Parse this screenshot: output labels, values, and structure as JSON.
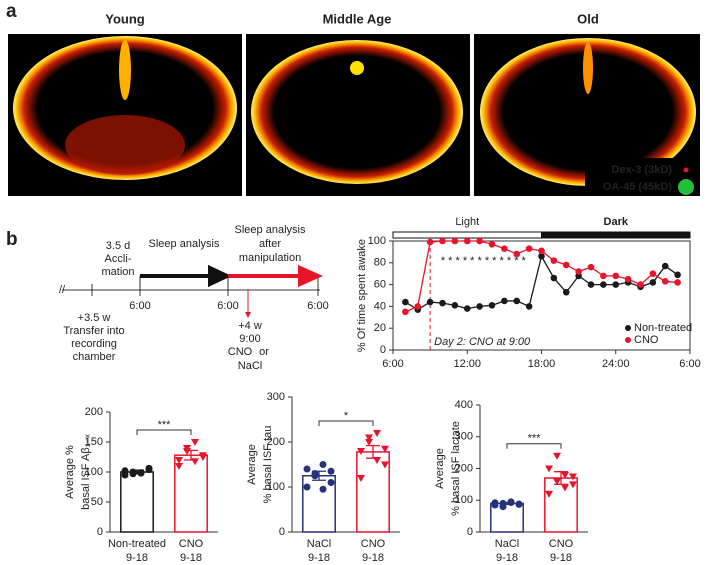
{
  "panel_a": {
    "label": "a",
    "titles": [
      "Young",
      "Middle Age",
      "Old"
    ],
    "legend": [
      {
        "text": "Dex-3 (3kD)",
        "color": "#e8142a"
      },
      {
        "text": "OA-45 (45kD)",
        "color": "#22c03a"
      }
    ]
  },
  "panel_b": {
    "label": "b"
  },
  "timeline": {
    "break": "//",
    "acclimation": [
      "3.5 d",
      "Accli-",
      "mation"
    ],
    "sleep_analysis": "Sleep analysis",
    "sleep_after": [
      "Sleep analysis",
      "after",
      "manipulation"
    ],
    "times": [
      "6:00",
      "6:00",
      "6:00"
    ],
    "transfer": [
      "+3.5 w",
      "Transfer into",
      "recording",
      "chamber"
    ],
    "injection": [
      "+4 w",
      "9:00"
    ],
    "cno": "CNO",
    "or": "or",
    "nacl": "NaCl"
  },
  "chart_data": [
    {
      "type": "line",
      "y_label": "% Of time spent awake",
      "x": [
        7,
        8,
        9,
        10,
        11,
        12,
        13,
        14,
        15,
        16,
        17,
        18,
        19,
        20,
        21,
        22,
        23,
        24,
        25,
        26,
        27,
        28,
        29
      ],
      "series": [
        {
          "name": "Non-treated",
          "color": "#1a1a1a",
          "values": [
            44,
            37,
            44,
            43,
            41,
            38,
            40,
            41,
            45,
            45,
            40,
            86,
            66,
            53,
            68,
            60,
            60,
            60,
            62,
            58,
            62,
            77,
            69
          ]
        },
        {
          "name": "CNO",
          "color": "#e8142a",
          "values": [
            35,
            40,
            99,
            100,
            100,
            100,
            100,
            97,
            93,
            88,
            93,
            91,
            82,
            78,
            72,
            76,
            68,
            68,
            65,
            60,
            70,
            63,
            62
          ]
        }
      ],
      "xlim": [
        6,
        30
      ],
      "xticks": [
        {
          "value": 6,
          "label": "6:00"
        },
        {
          "value": 12,
          "label": "12:00"
        },
        {
          "value": 18,
          "label": "18:00"
        },
        {
          "value": 24,
          "label": "24:00"
        },
        {
          "value": 30,
          "label": "6:00"
        }
      ],
      "ylim": [
        0,
        100
      ],
      "yticks": [
        0,
        20,
        40,
        60,
        80,
        100
      ],
      "phases": [
        {
          "label": "Light",
          "start": 6,
          "end": 18,
          "color": "#ffffff"
        },
        {
          "label": "Dark",
          "start": 18,
          "end": 30,
          "color": "#111111"
        }
      ],
      "marker": {
        "text": "Day 2: CNO at 9:00",
        "x": 9,
        "color": "#e8142a"
      },
      "stars": {
        "text": "* * * * * * * * * * * *",
        "x": 13.3
      },
      "legend": "bottom-right"
    },
    {
      "type": "bar",
      "y_label": [
        "Average %",
        "basal ISF Aβ₁₋ₓ"
      ],
      "categories": [
        "Non-treated",
        "CNO"
      ],
      "sublabels": [
        "9-18",
        "9-18"
      ],
      "values": [
        100,
        128
      ],
      "errors": [
        3,
        8
      ],
      "colors": [
        "#1a1a1a",
        "#e8142a"
      ],
      "points": [
        [
          95,
          100,
          98,
          104,
          102,
          97,
          99,
          106
        ],
        [
          110,
          135,
          150,
          125,
          120,
          140,
          118,
          128
        ]
      ],
      "significance": "***",
      "ylim": [
        0,
        200
      ],
      "yticks": [
        0,
        50,
        100,
        150,
        200
      ]
    },
    {
      "type": "bar",
      "y_label": [
        "Average",
        "% basal ISF tau"
      ],
      "categories": [
        "NaCl",
        "CNO"
      ],
      "sublabels": [
        "9-18",
        "9-18"
      ],
      "values": [
        125,
        178
      ],
      "errors": [
        10,
        14
      ],
      "colors": [
        "#26337a",
        "#e8142a"
      ],
      "points": [
        [
          100,
          130,
          150,
          110,
          140,
          125,
          95,
          135
        ],
        [
          120,
          200,
          220,
          150,
          180,
          210,
          160,
          185
        ]
      ],
      "significance": "*",
      "ylim": [
        0,
        300
      ],
      "yticks": [
        0,
        100,
        200,
        300
      ]
    },
    {
      "type": "bar",
      "y_label": [
        "Average",
        "% basal ISF lactate"
      ],
      "categories": [
        "NaCl",
        "CNO"
      ],
      "sublabels": [
        "9-18",
        "9-18"
      ],
      "values": [
        90,
        170
      ],
      "errors": [
        3,
        20
      ],
      "colors": [
        "#26337a",
        "#e8142a"
      ],
      "points": [
        [
          85,
          90,
          95,
          88,
          92,
          80,
          93,
          87
        ],
        [
          120,
          240,
          180,
          150,
          200,
          160,
          140,
          175
        ]
      ],
      "significance": "***",
      "ylim": [
        0,
        400
      ],
      "yticks": [
        0,
        100,
        200,
        300,
        400
      ]
    }
  ]
}
